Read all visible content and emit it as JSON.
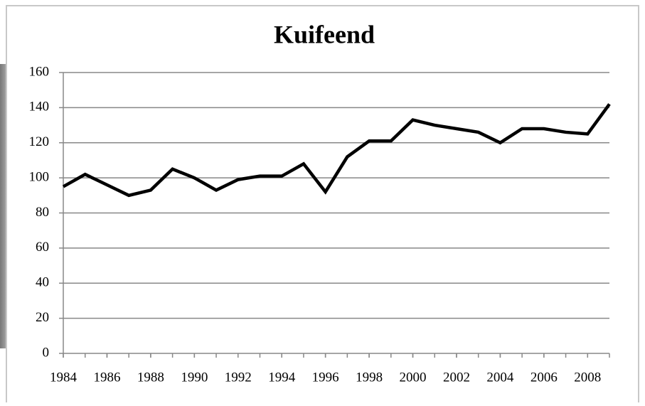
{
  "chart_data": {
    "type": "line",
    "title": "Kuifeend",
    "x": [
      1984,
      1985,
      1986,
      1987,
      1988,
      1989,
      1990,
      1991,
      1992,
      1993,
      1994,
      1995,
      1996,
      1997,
      1998,
      1999,
      2000,
      2001,
      2002,
      2003,
      2004,
      2005,
      2006,
      2007,
      2008,
      2009
    ],
    "series": [
      {
        "color": "#000000",
        "values": [
          95,
          102,
          96,
          90,
          93,
          105,
          100,
          93,
          99,
          101,
          101,
          108,
          92,
          112,
          121,
          121,
          133,
          130,
          128,
          126,
          120,
          128,
          128,
          126,
          125,
          142
        ]
      }
    ],
    "xlim": [
      1984,
      2009
    ],
    "xticks": [
      1984,
      1986,
      1988,
      1990,
      1992,
      1994,
      1996,
      1998,
      2000,
      2002,
      2004,
      2006,
      2008
    ],
    "ylim": [
      0,
      160
    ],
    "yticks": [
      0,
      20,
      40,
      60,
      80,
      100,
      120,
      140,
      160
    ],
    "grid": true
  }
}
